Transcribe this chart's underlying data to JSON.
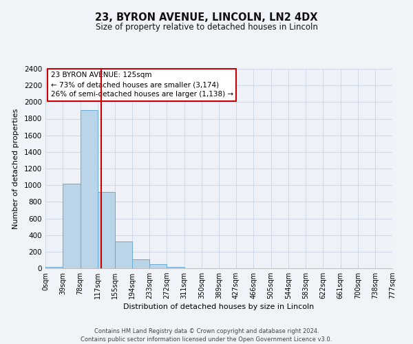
{
  "title": "23, BYRON AVENUE, LINCOLN, LN2 4DX",
  "subtitle": "Size of property relative to detached houses in Lincoln",
  "xlabel": "Distribution of detached houses by size in Lincoln",
  "ylabel": "Number of detached properties",
  "bar_values": [
    20,
    1020,
    1900,
    920,
    320,
    110,
    50,
    20,
    0,
    0,
    0,
    0,
    0,
    0,
    0,
    0,
    0,
    0,
    0,
    0
  ],
  "bin_edges": [
    0,
    39,
    78,
    117,
    155,
    194,
    233,
    272,
    311,
    350,
    389,
    427,
    466,
    505,
    544,
    583,
    622,
    661,
    700,
    738,
    777
  ],
  "tick_labels": [
    "0sqm",
    "39sqm",
    "78sqm",
    "117sqm",
    "155sqm",
    "194sqm",
    "233sqm",
    "272sqm",
    "311sqm",
    "350sqm",
    "389sqm",
    "427sqm",
    "466sqm",
    "505sqm",
    "544sqm",
    "583sqm",
    "622sqm",
    "661sqm",
    "700sqm",
    "738sqm",
    "777sqm"
  ],
  "bar_color": "#bad4e8",
  "bar_edge_color": "#6aaad4",
  "vline_x": 125,
  "vline_color": "#cc0000",
  "annotation_title": "23 BYRON AVENUE: 125sqm",
  "annotation_line1": "← 73% of detached houses are smaller (3,174)",
  "annotation_line2": "26% of semi-detached houses are larger (1,138) →",
  "annotation_box_color": "white",
  "annotation_box_edgecolor": "#cc0000",
  "ylim": [
    0,
    2400
  ],
  "yticks": [
    0,
    200,
    400,
    600,
    800,
    1000,
    1200,
    1400,
    1600,
    1800,
    2000,
    2200,
    2400
  ],
  "footer1": "Contains HM Land Registry data © Crown copyright and database right 2024.",
  "footer2": "Contains public sector information licensed under the Open Government Licence v3.0.",
  "bg_color": "#f0f4f8",
  "plot_bg_color": "#eef2f8",
  "grid_color": "#d0d8e8",
  "title_fontsize": 10.5,
  "subtitle_fontsize": 8.5,
  "label_fontsize": 8,
  "tick_fontsize": 7,
  "footer_fontsize": 6,
  "figsize": [
    6.0,
    5.0
  ],
  "dpi": 100
}
